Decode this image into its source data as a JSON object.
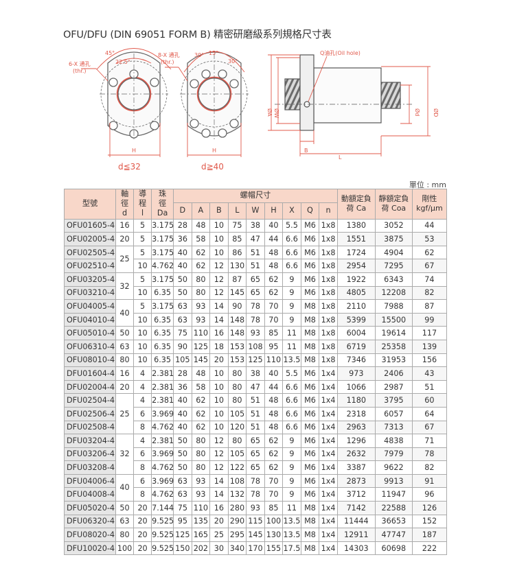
{
  "title": "OFU/DFU (DIN 69051 FORM B) 精密研磨級系列規格尺寸表",
  "diagram": {
    "labels": {
      "holes6": "6-X 通孔",
      "holes6_thr": "(thr.)",
      "holes8": "8-X 通孔",
      "holes8_thr": "(thr.)",
      "angle45": "45°",
      "angle22": "22.5°",
      "angle30a": "30°",
      "angle15": "15°",
      "angle30b": "30°",
      "h1": "H",
      "h2": "H",
      "oil_hole": "Q油孔(Oil hole)",
      "phiA": "ØA",
      "phiW": "ØW",
      "phid": "Ød",
      "phiD": "ØD",
      "B": "B",
      "L": "L",
      "cond1": "d≦32",
      "cond2": "d≧40"
    },
    "colors": {
      "dimension": "#e0584a",
      "drawing": "#666666"
    }
  },
  "unit": "單位 : mm",
  "table": {
    "headers": {
      "model": "型號",
      "d": [
        "軸",
        "徑",
        "d"
      ],
      "l": [
        "導",
        "程",
        "l"
      ],
      "da": [
        "珠",
        "徑",
        "Da"
      ],
      "nut": "螺帽尺寸",
      "nut_cols": [
        "D",
        "A",
        "B",
        "L",
        "W",
        "H",
        "X",
        "Q",
        "n"
      ],
      "ca": [
        "動額定負",
        "荷 Ca"
      ],
      "coa": [
        "靜額定負",
        "荷 Coa"
      ],
      "rigidity": [
        "剛性",
        "kgf/μm"
      ]
    },
    "colors": {
      "header_bg": "#f8d7c9",
      "model_bg": "#e6e6e6"
    },
    "rows": [
      [
        "OFU01605-4",
        "16",
        "5",
        "3.175",
        "28",
        "48",
        "10",
        "75",
        "38",
        "40",
        "5.5",
        "M6",
        "1x8",
        "1380",
        "3052",
        "44"
      ],
      [
        "OFU02005-4",
        "20",
        "5",
        "3.175",
        "36",
        "58",
        "10",
        "85",
        "47",
        "44",
        "6.6",
        "M6",
        "1x8",
        "1551",
        "3875",
        "53"
      ],
      [
        "OFU02505-4",
        "25",
        "5",
        "3.175",
        "40",
        "62",
        "10",
        "86",
        "51",
        "48",
        "6.6",
        "M6",
        "1x8",
        "1724",
        "4904",
        "62"
      ],
      [
        "OFU02510-4",
        "25",
        "10",
        "4.762",
        "40",
        "62",
        "12",
        "130",
        "51",
        "48",
        "6.6",
        "M6",
        "1x8",
        "2954",
        "7295",
        "67"
      ],
      [
        "OFU03205-4",
        "32",
        "5",
        "3.175",
        "50",
        "80",
        "12",
        "87",
        "65",
        "62",
        "9",
        "M6",
        "1x8",
        "1922",
        "6343",
        "74"
      ],
      [
        "OFU03210-4",
        "32",
        "10",
        "6.35",
        "50",
        "80",
        "12",
        "145",
        "65",
        "62",
        "9",
        "M6",
        "1x8",
        "4805",
        "12208",
        "82"
      ],
      [
        "OFU04005-4",
        "40",
        "5",
        "3.175",
        "63",
        "93",
        "14",
        "90",
        "78",
        "70",
        "9",
        "M8",
        "1x8",
        "2110",
        "7988",
        "87"
      ],
      [
        "OFU04010-4",
        "40",
        "10",
        "6.35",
        "63",
        "93",
        "14",
        "148",
        "78",
        "70",
        "9",
        "M8",
        "1x8",
        "5399",
        "15500",
        "99"
      ],
      [
        "OFU05010-4",
        "50",
        "10",
        "6.35",
        "75",
        "110",
        "16",
        "148",
        "93",
        "85",
        "11",
        "M8",
        "1x8",
        "6004",
        "19614",
        "117"
      ],
      [
        "OFU06310-4",
        "63",
        "10",
        "6.35",
        "90",
        "125",
        "18",
        "153",
        "108",
        "95",
        "11",
        "M8",
        "1x8",
        "6719",
        "25358",
        "139"
      ],
      [
        "OFU08010-4",
        "80",
        "10",
        "6.35",
        "105",
        "145",
        "20",
        "153",
        "125",
        "110",
        "13.5",
        "M8",
        "1x8",
        "7346",
        "31953",
        "156"
      ],
      [
        "DFU01604-4",
        "16",
        "4",
        "2.381",
        "28",
        "48",
        "10",
        "80",
        "38",
        "40",
        "5.5",
        "M6",
        "1x4",
        "973",
        "2406",
        "43"
      ],
      [
        "DFU02004-4",
        "20",
        "4",
        "2.381",
        "36",
        "58",
        "10",
        "80",
        "47",
        "44",
        "6.6",
        "M6",
        "1x4",
        "1066",
        "2987",
        "51"
      ],
      [
        "DFU02504-4",
        "25",
        "4",
        "2.381",
        "40",
        "62",
        "10",
        "80",
        "51",
        "48",
        "6.6",
        "M6",
        "1x4",
        "1180",
        "3795",
        "60"
      ],
      [
        "DFU02506-4",
        "25",
        "6",
        "3.969",
        "40",
        "62",
        "10",
        "105",
        "51",
        "48",
        "6.6",
        "M6",
        "1x4",
        "2318",
        "6057",
        "64"
      ],
      [
        "DFU02508-4",
        "25",
        "8",
        "4.762",
        "40",
        "62",
        "10",
        "120",
        "51",
        "48",
        "6.6",
        "M6",
        "1x4",
        "2963",
        "7313",
        "67"
      ],
      [
        "DFU03204-4",
        "32",
        "4",
        "2.381",
        "50",
        "80",
        "12",
        "80",
        "65",
        "62",
        "9",
        "M6",
        "1x4",
        "1296",
        "4838",
        "71"
      ],
      [
        "DFU03206-4",
        "32",
        "6",
        "3.969",
        "50",
        "80",
        "12",
        "105",
        "65",
        "62",
        "9",
        "M6",
        "1x4",
        "2632",
        "7979",
        "78"
      ],
      [
        "DFU03208-4",
        "32",
        "8",
        "4.762",
        "50",
        "80",
        "12",
        "122",
        "65",
        "62",
        "9",
        "M6",
        "1x4",
        "3387",
        "9622",
        "82"
      ],
      [
        "DFU04006-4",
        "40",
        "6",
        "3.969",
        "63",
        "93",
        "14",
        "108",
        "78",
        "70",
        "9",
        "M6",
        "1x4",
        "2873",
        "9913",
        "91"
      ],
      [
        "DFU04008-4",
        "40",
        "8",
        "4.762",
        "63",
        "93",
        "14",
        "132",
        "78",
        "70",
        "9",
        "M6",
        "1x4",
        "3712",
        "11947",
        "96"
      ],
      [
        "DFU05020-4",
        "50",
        "20",
        "7.144",
        "75",
        "110",
        "16",
        "280",
        "93",
        "85",
        "11",
        "M8",
        "1x4",
        "7142",
        "22588",
        "126"
      ],
      [
        "DFU06320-4",
        "63",
        "20",
        "9.525",
        "95",
        "135",
        "20",
        "290",
        "115",
        "100",
        "13.5",
        "M8",
        "1x4",
        "11444",
        "36653",
        "152"
      ],
      [
        "DFU08020-4",
        "80",
        "20",
        "9.525",
        "125",
        "165",
        "25",
        "295",
        "145",
        "130",
        "13.5",
        "M8",
        "1x4",
        "12911",
        "47747",
        "187"
      ],
      [
        "DFU10020-4",
        "100",
        "20",
        "9.525",
        "150",
        "202",
        "30",
        "340",
        "170",
        "155",
        "17.5",
        "M8",
        "1x4",
        "14303",
        "60698",
        "222"
      ]
    ]
  }
}
